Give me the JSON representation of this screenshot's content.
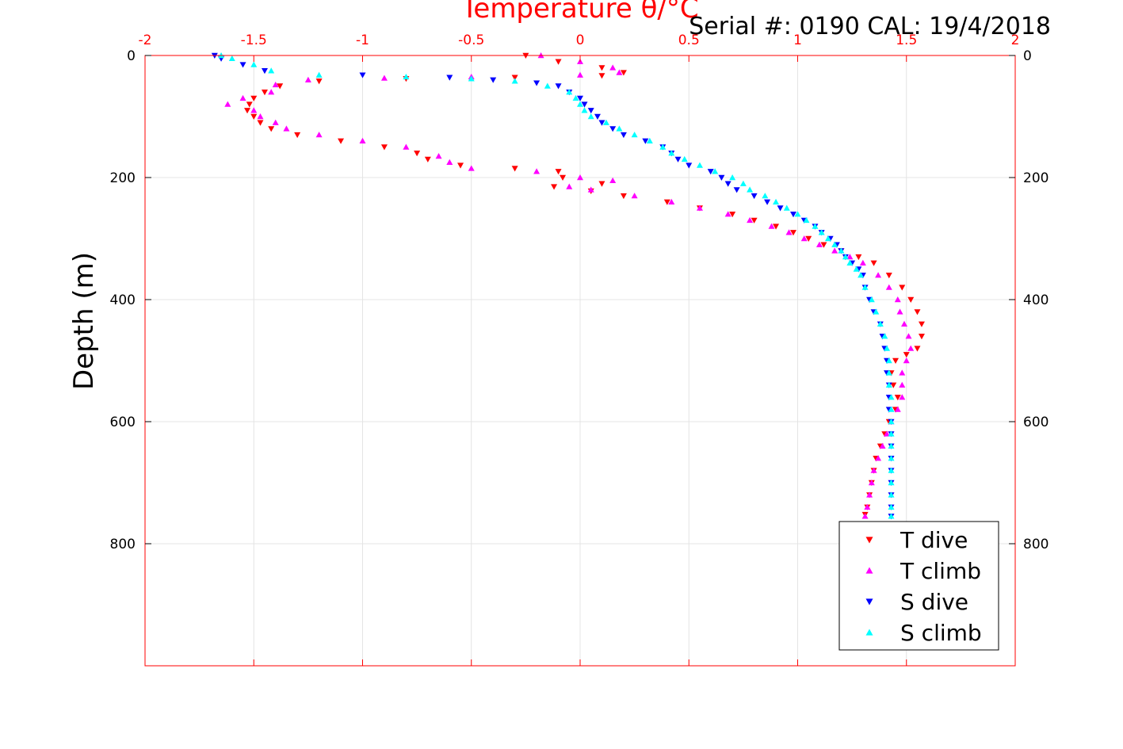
{
  "chart_data": {
    "type": "scatter",
    "xlabel": "Temperature θ/°C",
    "ylabel": "Depth (m)",
    "annotation": "Serial #: 0190  CAL: 19/4/2018",
    "xlim": [
      -2,
      2
    ],
    "ylim": [
      0,
      1000
    ],
    "y_reversed": true,
    "x_axis_position": "top",
    "grid": true,
    "legend_position": "bottom-right",
    "xticks": [
      -2,
      -1.5,
      -1,
      -0.5,
      0,
      0.5,
      1,
      1.5,
      2
    ],
    "xtick_labels": [
      "-2",
      "-1.5",
      "-1",
      "-0.5",
      "0",
      "0.5",
      "1",
      "1.5",
      "2"
    ],
    "yticks": [
      0,
      200,
      400,
      600,
      800
    ],
    "ytick_labels": [
      "0",
      "200",
      "400",
      "600",
      "800"
    ],
    "colors": {
      "axis": "#ff0000",
      "grid": "#e4e4e4"
    },
    "series": [
      {
        "name": "T dive",
        "marker": "triangle-down",
        "color": "#ff0000",
        "points": [
          [
            -0.25,
            0
          ],
          [
            -0.1,
            10
          ],
          [
            0.1,
            20
          ],
          [
            0.2,
            28
          ],
          [
            0.1,
            33
          ],
          [
            -0.3,
            36
          ],
          [
            -0.8,
            38
          ],
          [
            -1.2,
            42
          ],
          [
            -1.38,
            50
          ],
          [
            -1.45,
            60
          ],
          [
            -1.5,
            70
          ],
          [
            -1.52,
            80
          ],
          [
            -1.53,
            90
          ],
          [
            -1.5,
            100
          ],
          [
            -1.47,
            110
          ],
          [
            -1.42,
            120
          ],
          [
            -1.3,
            130
          ],
          [
            -1.1,
            140
          ],
          [
            -0.9,
            150
          ],
          [
            -0.75,
            160
          ],
          [
            -0.7,
            170
          ],
          [
            -0.55,
            180
          ],
          [
            -0.3,
            185
          ],
          [
            -0.1,
            190
          ],
          [
            -0.08,
            200
          ],
          [
            0.1,
            210
          ],
          [
            -0.12,
            215
          ],
          [
            0.05,
            222
          ],
          [
            0.2,
            230
          ],
          [
            0.4,
            240
          ],
          [
            0.55,
            250
          ],
          [
            0.7,
            260
          ],
          [
            0.8,
            270
          ],
          [
            0.9,
            280
          ],
          [
            0.98,
            290
          ],
          [
            1.05,
            300
          ],
          [
            1.12,
            310
          ],
          [
            1.2,
            320
          ],
          [
            1.28,
            330
          ],
          [
            1.35,
            340
          ],
          [
            1.42,
            360
          ],
          [
            1.48,
            380
          ],
          [
            1.52,
            400
          ],
          [
            1.55,
            420
          ],
          [
            1.57,
            440
          ],
          [
            1.57,
            460
          ],
          [
            1.55,
            480
          ],
          [
            1.5,
            490
          ],
          [
            1.45,
            500
          ],
          [
            1.43,
            520
          ],
          [
            1.44,
            540
          ],
          [
            1.46,
            560
          ],
          [
            1.45,
            580
          ],
          [
            1.42,
            600
          ],
          [
            1.4,
            620
          ],
          [
            1.38,
            640
          ],
          [
            1.36,
            660
          ],
          [
            1.35,
            680
          ],
          [
            1.34,
            700
          ],
          [
            1.33,
            720
          ],
          [
            1.32,
            740
          ],
          [
            1.31,
            752
          ]
        ]
      },
      {
        "name": "T climb",
        "marker": "triangle-up",
        "color": "#ff00ff",
        "points": [
          [
            -0.18,
            0
          ],
          [
            0.0,
            10
          ],
          [
            0.15,
            20
          ],
          [
            0.18,
            28
          ],
          [
            0.0,
            32
          ],
          [
            -0.5,
            35
          ],
          [
            -0.9,
            37
          ],
          [
            -1.25,
            40
          ],
          [
            -1.4,
            48
          ],
          [
            -1.42,
            60
          ],
          [
            -1.55,
            70
          ],
          [
            -1.62,
            80
          ],
          [
            -1.5,
            90
          ],
          [
            -1.47,
            100
          ],
          [
            -1.4,
            110
          ],
          [
            -1.35,
            120
          ],
          [
            -1.2,
            130
          ],
          [
            -1.0,
            140
          ],
          [
            -0.8,
            150
          ],
          [
            -0.65,
            165
          ],
          [
            -0.6,
            175
          ],
          [
            -0.5,
            185
          ],
          [
            -0.2,
            190
          ],
          [
            0.0,
            200
          ],
          [
            0.15,
            205
          ],
          [
            -0.05,
            215
          ],
          [
            0.05,
            220
          ],
          [
            0.25,
            230
          ],
          [
            0.42,
            240
          ],
          [
            0.55,
            250
          ],
          [
            0.68,
            260
          ],
          [
            0.78,
            270
          ],
          [
            0.88,
            280
          ],
          [
            0.96,
            290
          ],
          [
            1.03,
            300
          ],
          [
            1.1,
            310
          ],
          [
            1.17,
            320
          ],
          [
            1.24,
            330
          ],
          [
            1.3,
            340
          ],
          [
            1.37,
            360
          ],
          [
            1.42,
            380
          ],
          [
            1.46,
            400
          ],
          [
            1.47,
            420
          ],
          [
            1.49,
            440
          ],
          [
            1.51,
            460
          ],
          [
            1.52,
            480
          ],
          [
            1.5,
            500
          ],
          [
            1.48,
            520
          ],
          [
            1.48,
            540
          ],
          [
            1.48,
            560
          ],
          [
            1.46,
            580
          ],
          [
            1.43,
            600
          ],
          [
            1.41,
            620
          ],
          [
            1.39,
            640
          ],
          [
            1.37,
            660
          ],
          [
            1.35,
            680
          ],
          [
            1.34,
            700
          ],
          [
            1.33,
            720
          ],
          [
            1.32,
            740
          ],
          [
            1.31,
            755
          ]
        ]
      },
      {
        "name": "S dive",
        "marker": "triangle-down",
        "color": "#0000ff",
        "points": [
          [
            -1.68,
            0
          ],
          [
            -1.65,
            5
          ],
          [
            -1.55,
            15
          ],
          [
            -1.45,
            25
          ],
          [
            -1.0,
            32
          ],
          [
            -0.6,
            36
          ],
          [
            -0.4,
            40
          ],
          [
            -0.2,
            45
          ],
          [
            -0.1,
            50
          ],
          [
            -0.05,
            60
          ],
          [
            0.0,
            70
          ],
          [
            0.02,
            80
          ],
          [
            0.05,
            90
          ],
          [
            0.08,
            100
          ],
          [
            0.1,
            110
          ],
          [
            0.15,
            120
          ],
          [
            0.2,
            130
          ],
          [
            0.3,
            140
          ],
          [
            0.38,
            150
          ],
          [
            0.42,
            160
          ],
          [
            0.45,
            170
          ],
          [
            0.5,
            180
          ],
          [
            0.6,
            190
          ],
          [
            0.65,
            200
          ],
          [
            0.68,
            210
          ],
          [
            0.72,
            220
          ],
          [
            0.8,
            230
          ],
          [
            0.86,
            240
          ],
          [
            0.92,
            250
          ],
          [
            0.98,
            260
          ],
          [
            1.03,
            270
          ],
          [
            1.08,
            280
          ],
          [
            1.11,
            290
          ],
          [
            1.15,
            300
          ],
          [
            1.18,
            310
          ],
          [
            1.2,
            320
          ],
          [
            1.22,
            330
          ],
          [
            1.25,
            340
          ],
          [
            1.28,
            350
          ],
          [
            1.3,
            360
          ],
          [
            1.31,
            380
          ],
          [
            1.33,
            400
          ],
          [
            1.35,
            420
          ],
          [
            1.38,
            440
          ],
          [
            1.39,
            460
          ],
          [
            1.4,
            480
          ],
          [
            1.41,
            500
          ],
          [
            1.41,
            520
          ],
          [
            1.42,
            540
          ],
          [
            1.42,
            560
          ],
          [
            1.42,
            580
          ],
          [
            1.43,
            600
          ],
          [
            1.43,
            620
          ],
          [
            1.43,
            640
          ],
          [
            1.43,
            660
          ],
          [
            1.43,
            680
          ],
          [
            1.43,
            700
          ],
          [
            1.43,
            720
          ],
          [
            1.43,
            740
          ],
          [
            1.43,
            755
          ]
        ]
      },
      {
        "name": "S climb",
        "marker": "triangle-up",
        "color": "#00ffff",
        "points": [
          [
            -1.65,
            0
          ],
          [
            -1.6,
            5
          ],
          [
            -1.5,
            15
          ],
          [
            -1.42,
            25
          ],
          [
            -1.2,
            32
          ],
          [
            -0.8,
            35
          ],
          [
            -0.5,
            38
          ],
          [
            -0.3,
            42
          ],
          [
            -0.15,
            50
          ],
          [
            -0.05,
            60
          ],
          [
            -0.02,
            70
          ],
          [
            0.0,
            80
          ],
          [
            0.02,
            90
          ],
          [
            0.05,
            100
          ],
          [
            0.12,
            110
          ],
          [
            0.18,
            120
          ],
          [
            0.25,
            130
          ],
          [
            0.32,
            140
          ],
          [
            0.38,
            150
          ],
          [
            0.42,
            160
          ],
          [
            0.48,
            170
          ],
          [
            0.55,
            180
          ],
          [
            0.62,
            190
          ],
          [
            0.7,
            200
          ],
          [
            0.75,
            210
          ],
          [
            0.78,
            220
          ],
          [
            0.85,
            230
          ],
          [
            0.9,
            240
          ],
          [
            0.95,
            250
          ],
          [
            1.0,
            260
          ],
          [
            1.04,
            270
          ],
          [
            1.08,
            280
          ],
          [
            1.11,
            290
          ],
          [
            1.14,
            300
          ],
          [
            1.17,
            310
          ],
          [
            1.2,
            320
          ],
          [
            1.22,
            330
          ],
          [
            1.24,
            340
          ],
          [
            1.27,
            350
          ],
          [
            1.29,
            360
          ],
          [
            1.31,
            380
          ],
          [
            1.34,
            400
          ],
          [
            1.36,
            420
          ],
          [
            1.38,
            440
          ],
          [
            1.4,
            460
          ],
          [
            1.41,
            480
          ],
          [
            1.42,
            500
          ],
          [
            1.42,
            520
          ],
          [
            1.42,
            540
          ],
          [
            1.43,
            560
          ],
          [
            1.43,
            580
          ],
          [
            1.43,
            600
          ],
          [
            1.43,
            620
          ],
          [
            1.43,
            640
          ],
          [
            1.43,
            660
          ],
          [
            1.43,
            680
          ],
          [
            1.43,
            700
          ],
          [
            1.43,
            720
          ],
          [
            1.43,
            740
          ],
          [
            1.43,
            755
          ]
        ]
      }
    ]
  }
}
